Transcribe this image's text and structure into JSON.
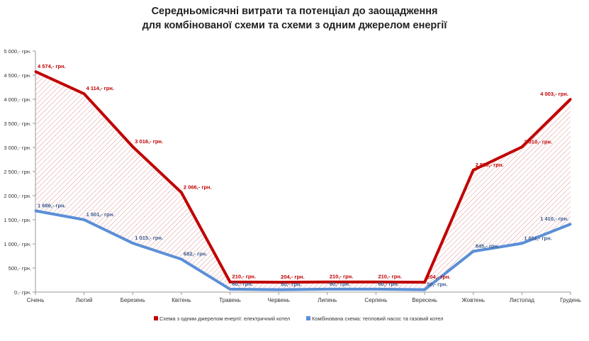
{
  "chart_data": {
    "type": "line",
    "title": "Середньомісячні витрати та потенціал до заощадження",
    "subtitle": "для комбінованої схеми та схеми з одним джерелом енергії",
    "categories": [
      "Січень",
      "Лютий",
      "Березень",
      "Квітень",
      "Травень",
      "Червень",
      "Липень",
      "Серпень",
      "Вересень",
      "Жовтень",
      "Листопад",
      "Грудень"
    ],
    "ylim": [
      0,
      5000
    ],
    "yticks": [
      0,
      500,
      1000,
      1500,
      2000,
      2500,
      3000,
      3500,
      4000,
      4500,
      5000
    ],
    "ytick_labels": [
      "0,- грн.",
      "500,- грн.",
      "1 000,- грн.",
      "1 500,- грн.",
      "2 000,- грн.",
      "2 500,- грн.",
      "3 000,- грн.",
      "3 500,- грн.",
      "4 000,- грн.",
      "4 500,- грн.",
      "5 000,- грн."
    ],
    "grid": false,
    "legend_position": "bottom",
    "series": [
      {
        "name": "Схема з одним джерелом енергії: електричний котел",
        "color": "#c00000",
        "values": [
          4574,
          4114,
          3016,
          2066,
          210,
          204,
          210,
          210,
          204,
          2530,
          3010,
          4003
        ],
        "labels": [
          "4 574,- грн.",
          "4 114,- грн.",
          "3 016,- грн.",
          "2 066,- грн.",
          "210,- грн.",
          "204,- грн.",
          "210,- грн.",
          "210,- грн.",
          "204,- грн.",
          "2 530,- грн.",
          "3 010,- грн.",
          "4 003,- грн."
        ]
      },
      {
        "name": "Комбінована схема: тепловий насос та газовий котел",
        "color": "#5b8fd6",
        "values": [
          1686,
          1501,
          1015,
          682,
          60,
          50,
          60,
          60,
          50,
          845,
          1011,
          1410
        ],
        "labels": [
          "1 686,- грн.",
          "1 501,- грн.",
          "1 015,- грн.",
          "682,- грн.",
          "60,- грн.",
          "50,- грн.",
          "60,- грн.",
          "60,- грн.",
          "50,- грн.",
          "845,- грн.",
          "1 011,- грн.",
          "1 410,- грн."
        ]
      }
    ]
  }
}
